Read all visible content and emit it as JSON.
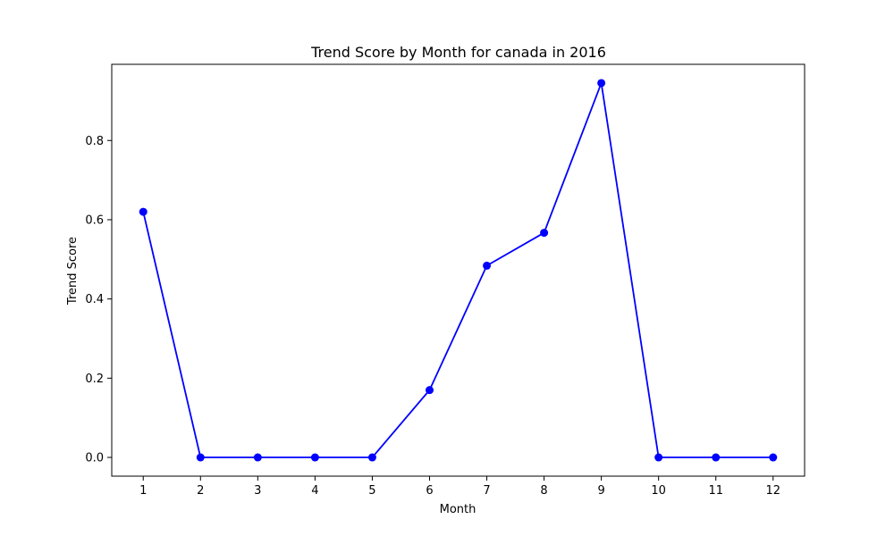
{
  "chart_data": {
    "type": "line",
    "title": "Trend Score by Month for canada in 2016",
    "xlabel": "Month",
    "ylabel": "Trend Score",
    "x": [
      1,
      2,
      3,
      4,
      5,
      6,
      7,
      8,
      9,
      10,
      11,
      12
    ],
    "series": [
      {
        "values": [
          0.62,
          0.0,
          0.0,
          0.0,
          0.0,
          0.17,
          0.484,
          0.567,
          0.945,
          0.0,
          0.0,
          0.0
        ],
        "color": "#0000ff",
        "marker": "circle"
      }
    ],
    "xticks": [
      "1",
      "2",
      "3",
      "4",
      "5",
      "6",
      "7",
      "8",
      "9",
      "10",
      "11",
      "12"
    ],
    "yticks": [
      "0.0",
      "0.2",
      "0.4",
      "0.6",
      "0.8"
    ],
    "ytick_values": [
      0.0,
      0.2,
      0.4,
      0.6,
      0.8
    ],
    "xlim": [
      0.45,
      12.55
    ],
    "ylim": [
      -0.0473,
      0.9923
    ],
    "grid": false,
    "legend": "none"
  }
}
